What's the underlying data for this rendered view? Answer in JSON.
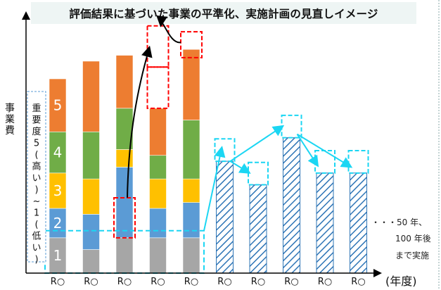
{
  "chart_data": {
    "type": "bar",
    "title": "評価結果に基づいた事業の平準化、実施計画の見直しイメージ",
    "ylabel": "事業費",
    "xlabel": "(年度)",
    "categories": [
      "R○",
      "R○",
      "R○",
      "R○",
      "R○",
      "R○",
      "R○",
      "R○",
      "R○",
      "R○"
    ],
    "legend_label": "重要度5(高い)~1(低い)",
    "priority_levels": [
      "1",
      "2",
      "3",
      "4",
      "5"
    ],
    "colors": {
      "p1": "#a6a6a6",
      "p2": "#5b9bd5",
      "p3": "#ffc000",
      "p4": "#70ad47",
      "p5": "#ed7d31",
      "planned_hatch": "#2e75b6",
      "planned_arrow": "#1bd6f3",
      "moved": "#ff0000",
      "priority_box": "#1bd6f3"
    },
    "stacked_series": [
      {
        "name": "1",
        "values": [
          3,
          2,
          3,
          3,
          3
        ]
      },
      {
        "name": "2",
        "values": [
          2.5,
          3,
          6,
          2.5,
          3
        ]
      },
      {
        "name": "3",
        "values": [
          3,
          3,
          1.5,
          2.5,
          2
        ]
      },
      {
        "name": "4",
        "values": [
          3.5,
          4,
          3.5,
          2,
          5
        ]
      },
      {
        "name": "5",
        "values": [
          4.5,
          6,
          4.5,
          4,
          6
        ]
      }
    ],
    "stacked_categories": [
      0,
      1,
      2,
      3,
      4
    ],
    "planned_categories": [
      5,
      6,
      7,
      8,
      9
    ],
    "planned_values": [
      9.5,
      7.5,
      11.5,
      8.5,
      8.5
    ],
    "moved_blocks": [
      {
        "category": 2,
        "value": 3
      },
      {
        "category": 3,
        "value": 2.5
      },
      {
        "category": 4,
        "value": 2
      }
    ],
    "ylim": [
      0,
      22
    ]
  },
  "annotation": {
    "bottom_note_lines": [
      "・・・50 年、",
      "100 年後",
      "まで実施"
    ]
  }
}
